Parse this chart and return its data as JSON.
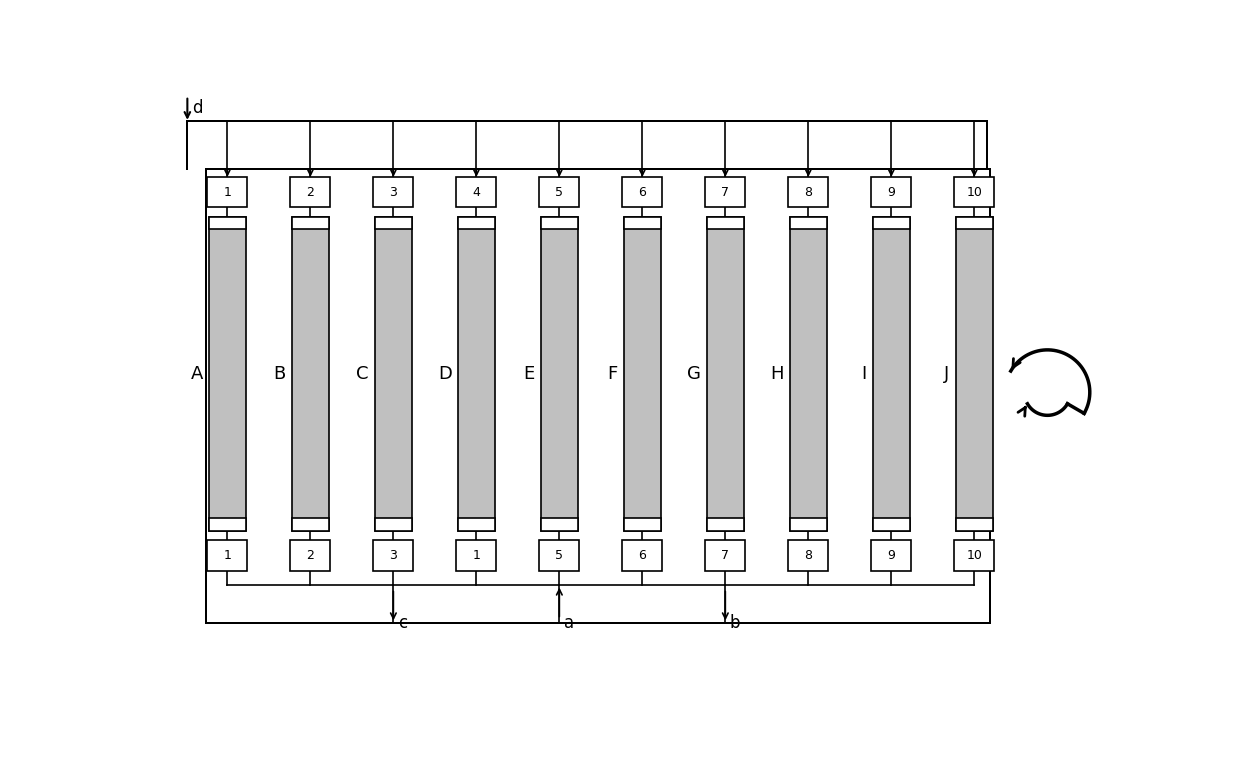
{
  "num_columns": 10,
  "column_labels": [
    "A",
    "B",
    "C",
    "D",
    "E",
    "F",
    "G",
    "H",
    "I",
    "J"
  ],
  "top_valve_labels": [
    "1",
    "2",
    "3",
    "4",
    "5",
    "6",
    "7",
    "8",
    "9",
    "10"
  ],
  "bottom_valve_labels": [
    "1",
    "2",
    "3",
    "1",
    "5",
    "6",
    "7",
    "8",
    "9",
    "10"
  ],
  "outlet_c_col_idx": 2,
  "inlet_a_col_idx": 4,
  "outlet_b_col_idx": 6,
  "bg_color": "#ffffff",
  "column_fill": "#c0c0c0",
  "line_color": "#000000",
  "lw": 1.2
}
